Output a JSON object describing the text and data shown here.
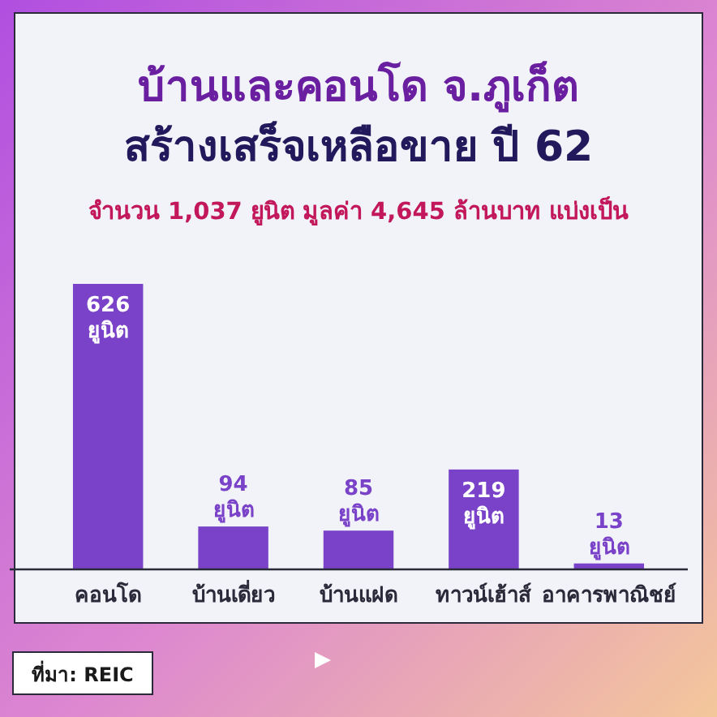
{
  "chart_data": {
    "type": "bar",
    "title": "บ้านและคอนโด จ.ภูเก็ต\nสร้างเสร็จเหลือขาย ปี 62",
    "subtitle": "จำนวน 1,037 ยูนิต มูลค่า 4,645 ล้านบาท แบ่งเป็น",
    "categories": [
      "คอนโด",
      "บ้านเดี่ยว",
      "บ้านแฝด",
      "ทาวน์เฮ้าส์",
      "อาคารพาณิชย์"
    ],
    "values": [
      626,
      94,
      85,
      219,
      13
    ],
    "value_labels": [
      "626 ยูนิต",
      "94 ยูนิต",
      "85 ยูนิต",
      "219 ยูนิต",
      "13 ยูนิต"
    ],
    "color": "#7a42c8",
    "annotations": [
      "ที่มา: REIC"
    ]
  }
}
